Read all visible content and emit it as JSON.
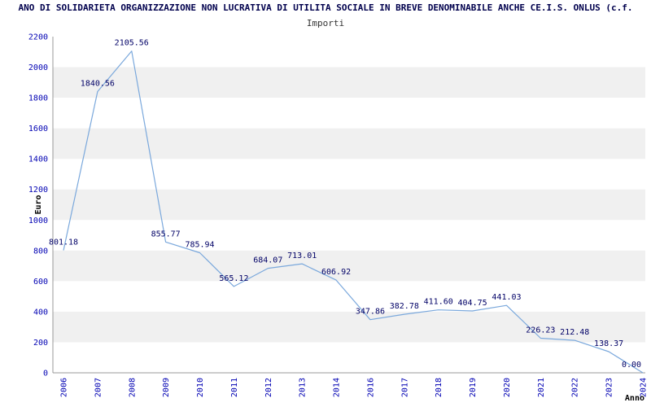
{
  "chart_data": {
    "type": "line",
    "title": "ANO DI SOLIDARIETA ORGANIZZAZIONE NON LUCRATIVA DI UTILITA SOCIALE IN BREVE DENOMINABILE ANCHE CE.I.S. ONLUS (c.f.",
    "subtitle": "Importi",
    "xlabel": "Anno",
    "ylabel": "Euro",
    "categories": [
      "2006",
      "2007",
      "2008",
      "2009",
      "2010",
      "2011",
      "2012",
      "2013",
      "2014",
      "2016",
      "2017",
      "2018",
      "2019",
      "2020",
      "2021",
      "2022",
      "2023",
      "2024"
    ],
    "values": [
      801.18,
      1840.56,
      2105.56,
      855.77,
      785.94,
      565.12,
      684.07,
      713.01,
      606.92,
      347.86,
      382.78,
      411.6,
      404.75,
      441.03,
      226.23,
      212.48,
      138.37,
      0.0
    ],
    "ylim": [
      0,
      2200
    ],
    "ytick_step": 200,
    "grid": "alternating-bands",
    "legend": "none",
    "colors": {
      "line": "#7aa8dc",
      "band": "#f0f0f0",
      "axis": "#999999",
      "tick_label": "#0000b3",
      "data_label": "#000066",
      "axis_title": "#000000"
    }
  }
}
